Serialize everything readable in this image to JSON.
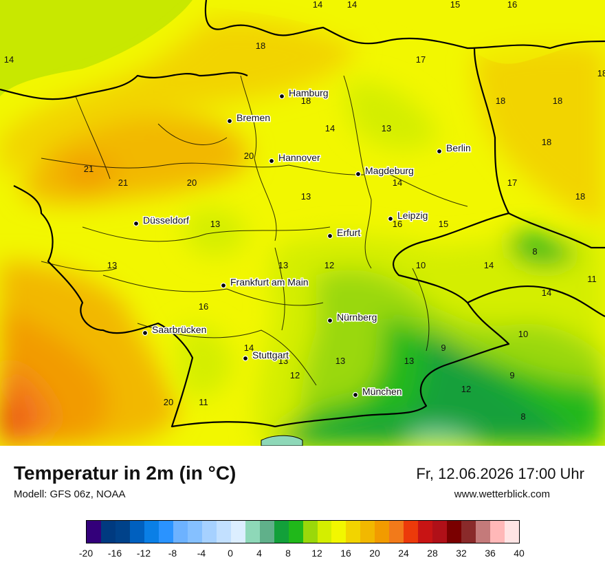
{
  "title": "Temperatur in 2m (in °C)",
  "model": "Modell: GFS 06z, NOAA",
  "datetime": "Fr, 12.06.2026 17:00 Uhr",
  "website": "www.wetterblick.com",
  "cities": [
    {
      "name": "Hamburg"
    },
    {
      "name": "Bremen"
    },
    {
      "name": "Hannover"
    },
    {
      "name": "Berlin"
    },
    {
      "name": "Magdeburg"
    },
    {
      "name": "Leipzig"
    },
    {
      "name": "Düsseldorf"
    },
    {
      "name": "Erfurt"
    },
    {
      "name": "Frankfurt am Main"
    },
    {
      "name": "Nürnberg"
    },
    {
      "name": "Saarbrücken"
    },
    {
      "name": "Stuttgart"
    },
    {
      "name": "München"
    }
  ],
  "temperature_labels": [
    "14",
    "14",
    "14",
    "15",
    "16",
    "18",
    "17",
    "18",
    "18",
    "18",
    "18",
    "17",
    "18",
    "18",
    "14",
    "13",
    "14",
    "21",
    "21",
    "20",
    "20",
    "13",
    "13",
    "16",
    "15",
    "13",
    "13",
    "12",
    "10",
    "8",
    "14",
    "11",
    "14",
    "10",
    "16",
    "13",
    "13",
    "12",
    "9",
    "9",
    "14",
    "13",
    "20",
    "11",
    "12",
    "8"
  ],
  "scale": {
    "ticks": [
      "-20",
      "-16",
      "-12",
      "-8",
      "-4",
      "0",
      "4",
      "8",
      "12",
      "16",
      "20",
      "24",
      "28",
      "32",
      "36",
      "40"
    ],
    "colors": [
      "#33007a",
      "#003a80",
      "#00428a",
      "#0060bf",
      "#0a7fe6",
      "#2a93ff",
      "#6db2ff",
      "#85c0ff",
      "#a6d1ff",
      "#c2e0ff",
      "#dceeff",
      "#8ed8b8",
      "#60b08a",
      "#12a03a",
      "#20b81a",
      "#9ad80a",
      "#d4ee00",
      "#f2f700",
      "#f2d400",
      "#f2b800",
      "#f29b00",
      "#f27a1a",
      "#ec3a0a",
      "#c81414",
      "#b01018",
      "#7a0000",
      "#8a2a2a",
      "#c47a7a",
      "#ffb8b8",
      "#ffe4e4"
    ]
  }
}
